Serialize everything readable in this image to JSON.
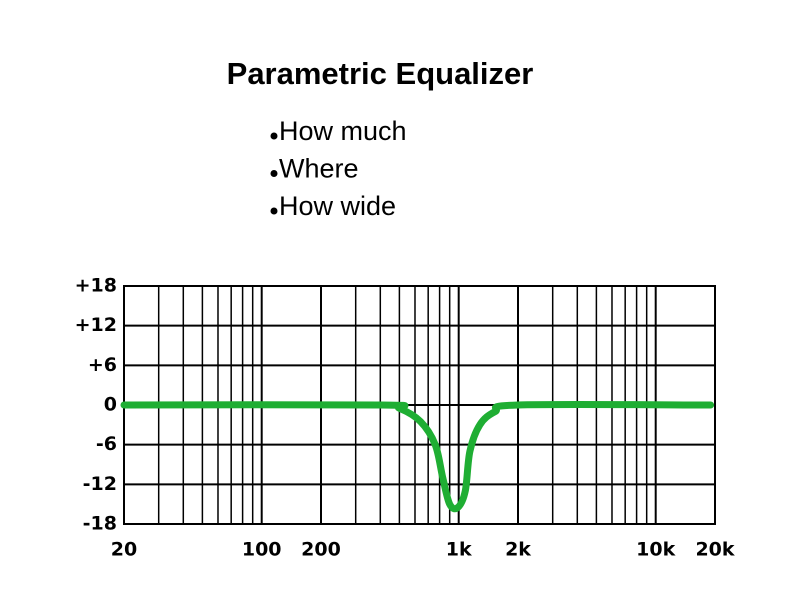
{
  "chart_data": {
    "type": "line",
    "title": "Parametric Equalizer",
    "bullets": [
      "How much",
      "Where",
      "How wide"
    ],
    "x": [
      20,
      400,
      500,
      640,
      760,
      830,
      900,
      990,
      1080,
      1140,
      1280,
      1530,
      2000,
      19000
    ],
    "series": [
      {
        "color": "#1fae33",
        "values": [
          0,
          0,
          -0.5,
          -2.5,
          -6,
          -11,
          -15,
          -15.5,
          -13,
          -7,
          -3,
          -1,
          0,
          0
        ]
      }
    ],
    "xscale": "log",
    "xlim": [
      20,
      20000
    ],
    "xticks": [
      20,
      100,
      200,
      {
        "value": 1000,
        "label": "1k"
      },
      {
        "value": 2000,
        "label": "2k"
      },
      {
        "value": 10000,
        "label": "10k"
      },
      {
        "value": 20000,
        "label": "20k"
      }
    ],
    "xminor_ticks": [
      30,
      40,
      50,
      60,
      70,
      80,
      90,
      300,
      400,
      500,
      600,
      700,
      800,
      900,
      3000,
      4000,
      5000,
      6000,
      7000,
      8000,
      9000
    ],
    "ylim": [
      -18,
      18
    ],
    "yticks": [
      {
        "value": 18,
        "label": "+18"
      },
      {
        "value": 12,
        "label": "+12"
      },
      {
        "value": 6,
        "label": "+6"
      },
      0,
      -6,
      -12,
      -18
    ],
    "grid": true
  }
}
